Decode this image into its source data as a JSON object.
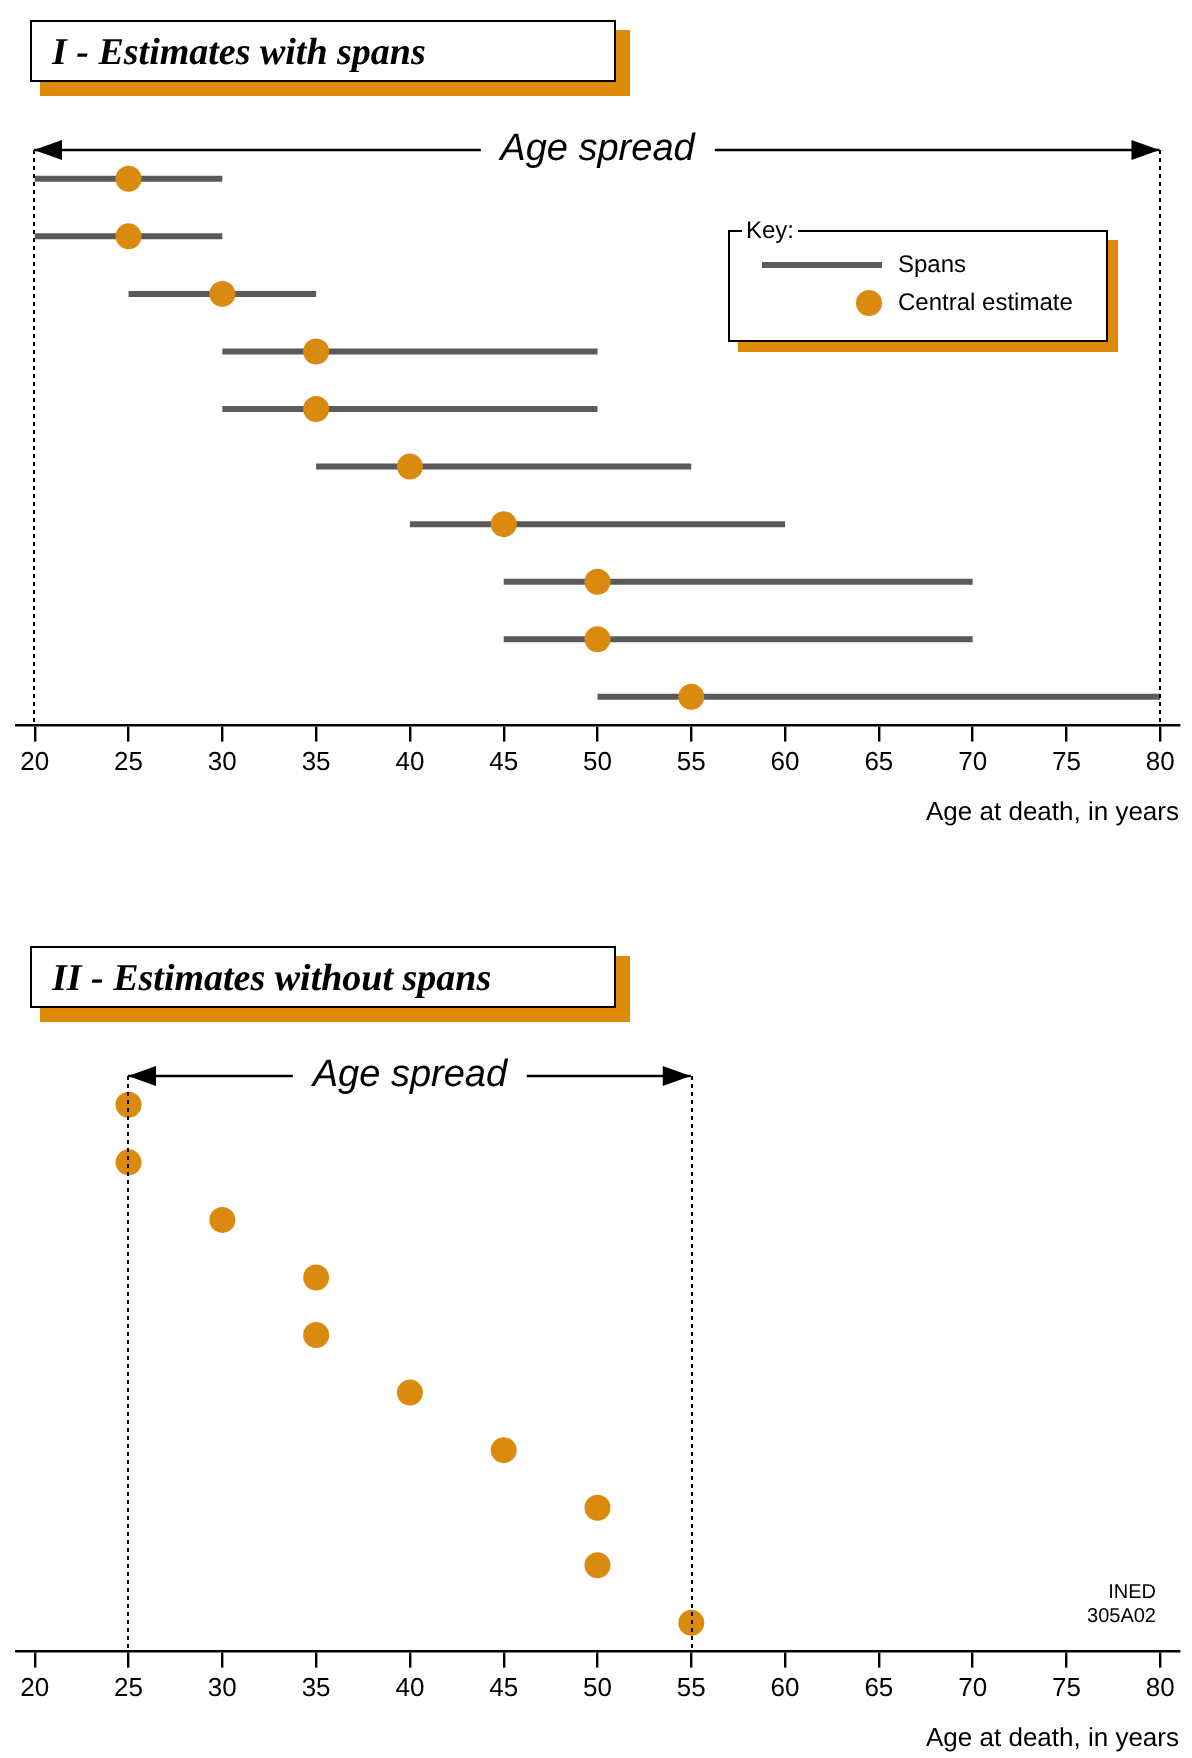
{
  "chart_data": [
    {
      "type": "scatter",
      "title": "I - Estimates with spans",
      "xlabel": "Age at death, in years",
      "orientation": "horizontal",
      "categories": [
        null,
        null,
        null,
        null,
        null,
        null,
        null,
        null,
        null,
        null
      ],
      "xlim": [
        19,
        81
      ],
      "xticks": [
        20,
        25,
        30,
        35,
        40,
        45,
        50,
        55,
        60,
        65,
        70,
        75,
        80
      ],
      "tick_labels": "x",
      "legend": "top right",
      "legend_title": "Key:",
      "annotations": [
        "Age spread",
        "Spans"
      ],
      "series": [
        {
          "name": "Central estimate",
          "color": "#d98a0f",
          "values": [
            25,
            25,
            30,
            35,
            35,
            40,
            45,
            50,
            50,
            55
          ],
          "errors": [
            [
              20,
              30
            ],
            [
              20,
              30
            ],
            [
              25,
              35
            ],
            [
              30,
              50
            ],
            [
              30,
              50
            ],
            [
              35,
              55
            ],
            [
              40,
              60
            ],
            [
              45,
              70
            ],
            [
              45,
              70
            ],
            [
              50,
              80
            ]
          ]
        }
      ]
    },
    {
      "type": "scatter",
      "title": "II - Estimates without spans",
      "xlabel": "Age at death, in years",
      "orientation": "horizontal",
      "categories": [
        null,
        null,
        null,
        null,
        null,
        null,
        null,
        null,
        null,
        null
      ],
      "xlim": [
        19,
        81
      ],
      "xticks": [
        20,
        25,
        30,
        35,
        40,
        45,
        50,
        55,
        60,
        65,
        70,
        75,
        80
      ],
      "tick_labels": "x",
      "annotations": [
        "Age spread",
        "INED\n305A02"
      ],
      "series": [
        {
          "color": "#d98a0f",
          "values": [
            25,
            25,
            30,
            35,
            35,
            40,
            45,
            50,
            50,
            55
          ]
        }
      ]
    }
  ]
}
